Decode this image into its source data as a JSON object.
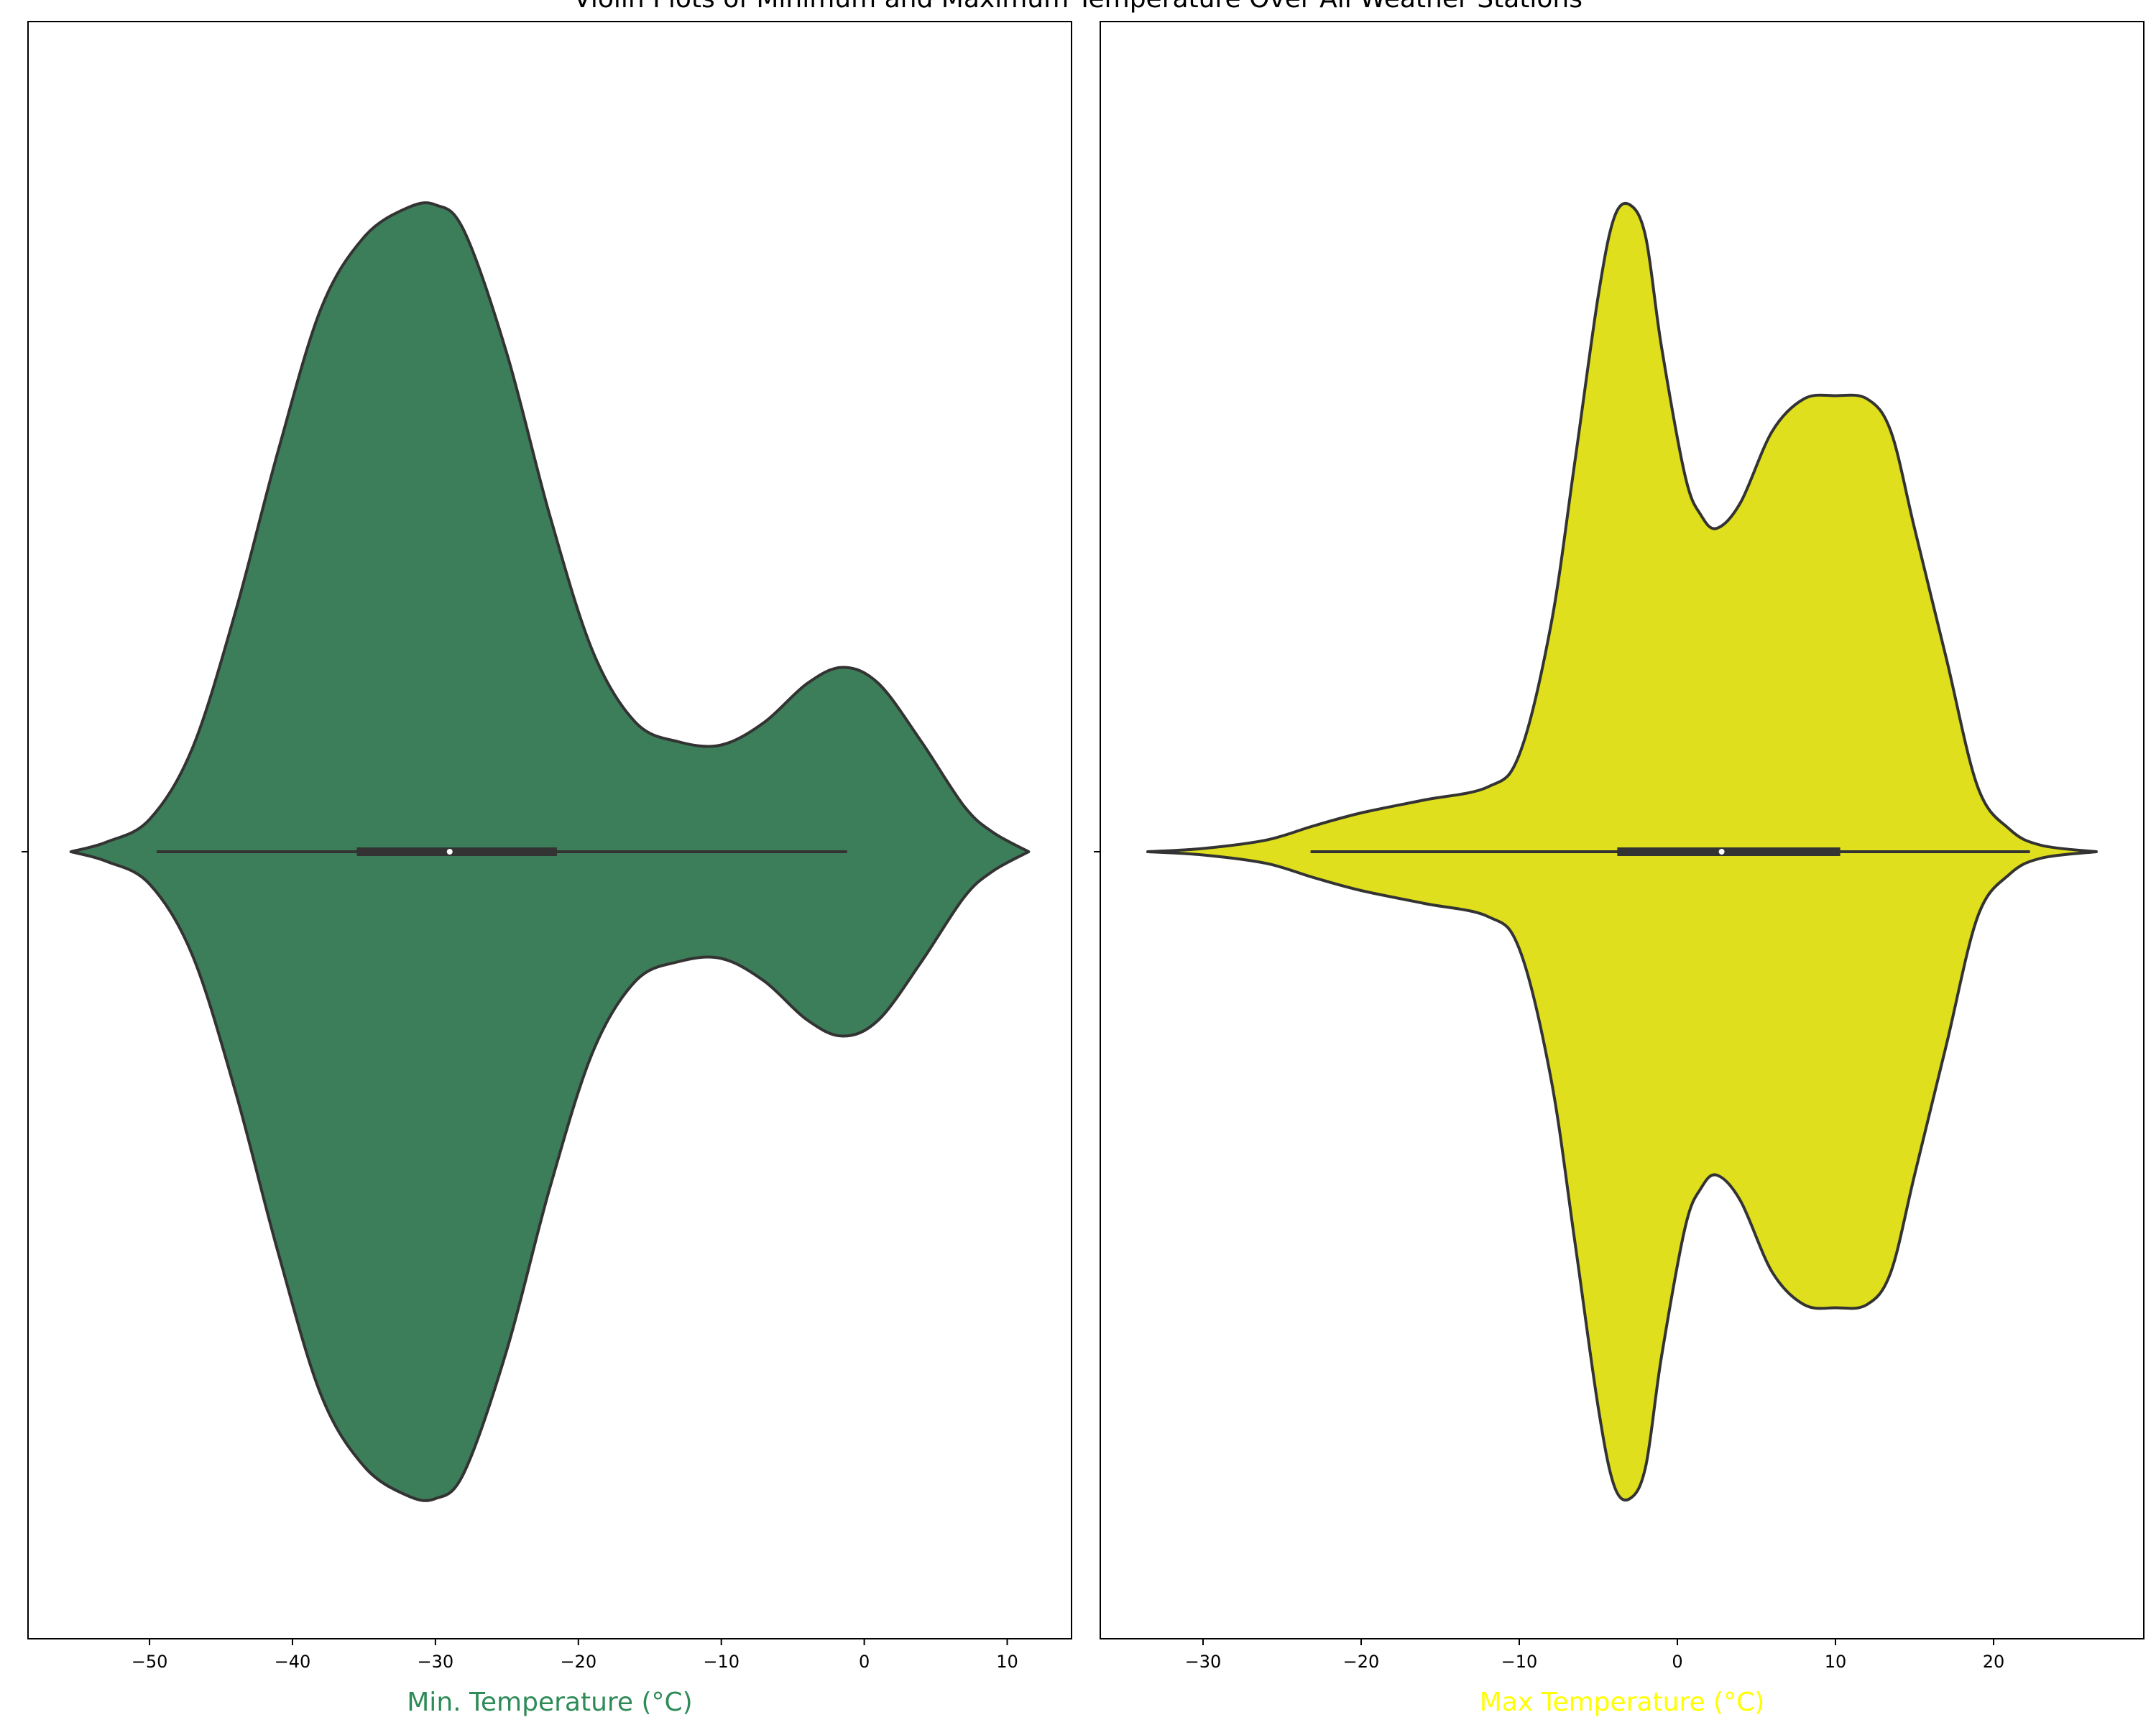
{
  "title": "Violin Plots of Minimum and Maximum Temperature Over All Weather Stations",
  "chart_data": [
    {
      "type": "violin",
      "xlabel": "Min. Temperature (°C)",
      "xlabel_color": "#2e8b57",
      "fill_color": "#3c7e59",
      "edge_color": "#333333",
      "xlim": [
        -58.5,
        14.5
      ],
      "ticks": [
        -50,
        -40,
        -30,
        -20,
        -10,
        0,
        10
      ],
      "tick_labels": [
        "−50",
        "−40",
        "−30",
        "−20",
        "−10",
        "0",
        "10"
      ],
      "density": [
        [
          -55.5,
          0.0
        ],
        [
          -53,
          0.015
        ],
        [
          -50,
          0.05
        ],
        [
          -47,
          0.16
        ],
        [
          -44,
          0.37
        ],
        [
          -41,
          0.62
        ],
        [
          -38,
          0.84
        ],
        [
          -35,
          0.95
        ],
        [
          -32,
          0.995
        ],
        [
          -30,
          1.0
        ],
        [
          -28,
          0.96
        ],
        [
          -25,
          0.77
        ],
        [
          -22,
          0.52
        ],
        [
          -19,
          0.31
        ],
        [
          -16,
          0.2
        ],
        [
          -13,
          0.17
        ],
        [
          -10,
          0.165
        ],
        [
          -7,
          0.2
        ],
        [
          -4,
          0.26
        ],
        [
          -1.5,
          0.285
        ],
        [
          1,
          0.26
        ],
        [
          4,
          0.17
        ],
        [
          7,
          0.07
        ],
        [
          9,
          0.03
        ],
        [
          11.5,
          0.0
        ]
      ],
      "whisker": [
        -49.5,
        -1.2
      ],
      "quartiles": [
        -35.5,
        -21.5
      ],
      "median": -29.0
    },
    {
      "type": "violin",
      "xlabel": "Max Temperature (°C)",
      "xlabel_color": "#ffff00",
      "fill_color": "#dfdf1e",
      "edge_color": "#333333",
      "xlim": [
        -36.5,
        29.5
      ],
      "ticks": [
        -30,
        -20,
        -10,
        0,
        10,
        20
      ],
      "tick_labels": [
        "−30",
        "−20",
        "−10",
        "0",
        "10",
        "20"
      ],
      "density": [
        [
          -33.5,
          0.0
        ],
        [
          -30,
          0.005
        ],
        [
          -26,
          0.018
        ],
        [
          -23,
          0.04
        ],
        [
          -20,
          0.06
        ],
        [
          -16,
          0.08
        ],
        [
          -12,
          0.1
        ],
        [
          -10,
          0.15
        ],
        [
          -8,
          0.35
        ],
        [
          -6.5,
          0.6
        ],
        [
          -5,
          0.86
        ],
        [
          -4,
          0.98
        ],
        [
          -3,
          1.0
        ],
        [
          -2,
          0.95
        ],
        [
          -1,
          0.78
        ],
        [
          0.5,
          0.58
        ],
        [
          1.5,
          0.52
        ],
        [
          2.5,
          0.5
        ],
        [
          4,
          0.54
        ],
        [
          6,
          0.65
        ],
        [
          8,
          0.7
        ],
        [
          10,
          0.705
        ],
        [
          12,
          0.7
        ],
        [
          13.5,
          0.65
        ],
        [
          15,
          0.5
        ],
        [
          17,
          0.3
        ],
        [
          19,
          0.1
        ],
        [
          21,
          0.035
        ],
        [
          23,
          0.01
        ],
        [
          26.5,
          0.0
        ]
      ],
      "whisker": [
        -23.2,
        22.3
      ],
      "quartiles": [
        -3.8,
        10.3
      ],
      "median": 2.8
    }
  ]
}
